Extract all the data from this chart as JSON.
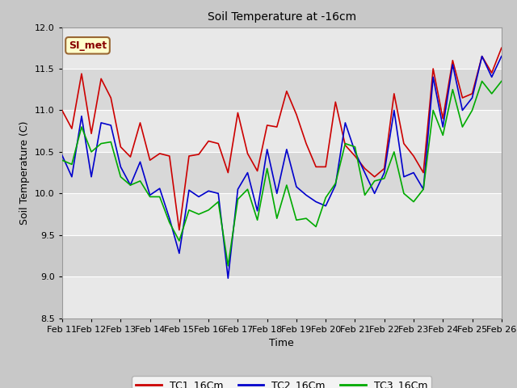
{
  "title": "Soil Temperature at -16cm",
  "xlabel": "Time",
  "ylabel": "Soil Temperature (C)",
  "ylim": [
    8.5,
    12.0
  ],
  "x_tick_labels": [
    "Feb 11",
    "Feb 12",
    "Feb 13",
    "Feb 14",
    "Feb 15",
    "Feb 16",
    "Feb 17",
    "Feb 18",
    "Feb 19",
    "Feb 20",
    "Feb 21",
    "Feb 22",
    "Feb 23",
    "Feb 24",
    "Feb 25",
    "Feb 26"
  ],
  "legend_label": "SI_met",
  "legend_bg": "#ffffcc",
  "legend_border": "#996633",
  "line_colors": [
    "#cc0000",
    "#0000cc",
    "#00aa00"
  ],
  "line_labels": [
    "TC1_16Cm",
    "TC2_16Cm",
    "TC3_16Cm"
  ],
  "fig_bg": "#c8c8c8",
  "plot_bg_light": "#e8e8e8",
  "plot_bg_dark": "#d8d8d8",
  "band_edges": [
    8.5,
    9.0,
    9.5,
    10.0,
    10.5,
    11.0,
    11.5,
    12.0
  ],
  "TC1": [
    11.0,
    10.78,
    11.44,
    10.72,
    11.38,
    11.15,
    10.56,
    10.44,
    10.85,
    10.4,
    10.48,
    10.45,
    9.56,
    10.45,
    10.47,
    10.63,
    10.6,
    10.25,
    10.97,
    10.48,
    10.27,
    10.82,
    10.8,
    11.23,
    10.95,
    10.6,
    10.32,
    10.32,
    11.1,
    10.58,
    10.45,
    10.3,
    10.2,
    10.3,
    11.2,
    10.6,
    10.45,
    10.25,
    11.5,
    10.9,
    11.6,
    11.15,
    11.2,
    11.65,
    11.45,
    11.75
  ],
  "TC2": [
    10.46,
    10.2,
    10.93,
    10.2,
    10.85,
    10.82,
    10.32,
    10.1,
    10.38,
    9.98,
    10.06,
    9.7,
    9.28,
    10.04,
    9.96,
    10.03,
    10.0,
    8.98,
    10.05,
    10.25,
    9.79,
    10.53,
    10.0,
    10.53,
    10.08,
    9.98,
    9.9,
    9.85,
    10.1,
    10.85,
    10.5,
    10.25,
    10.0,
    10.25,
    11.0,
    10.2,
    10.25,
    10.05,
    11.4,
    10.8,
    11.55,
    11.0,
    11.15,
    11.65,
    11.4,
    11.65
  ],
  "TC3": [
    10.4,
    10.35,
    10.8,
    10.5,
    10.6,
    10.62,
    10.2,
    10.1,
    10.15,
    9.96,
    9.96,
    9.65,
    9.43,
    9.8,
    9.75,
    9.8,
    9.9,
    9.13,
    9.93,
    10.05,
    9.68,
    10.3,
    9.7,
    10.1,
    9.68,
    9.7,
    9.6,
    9.95,
    10.12,
    10.6,
    10.56,
    9.98,
    10.15,
    10.18,
    10.5,
    10.0,
    9.9,
    10.05,
    11.0,
    10.7,
    11.25,
    10.8,
    11.0,
    11.35,
    11.2,
    11.35
  ]
}
